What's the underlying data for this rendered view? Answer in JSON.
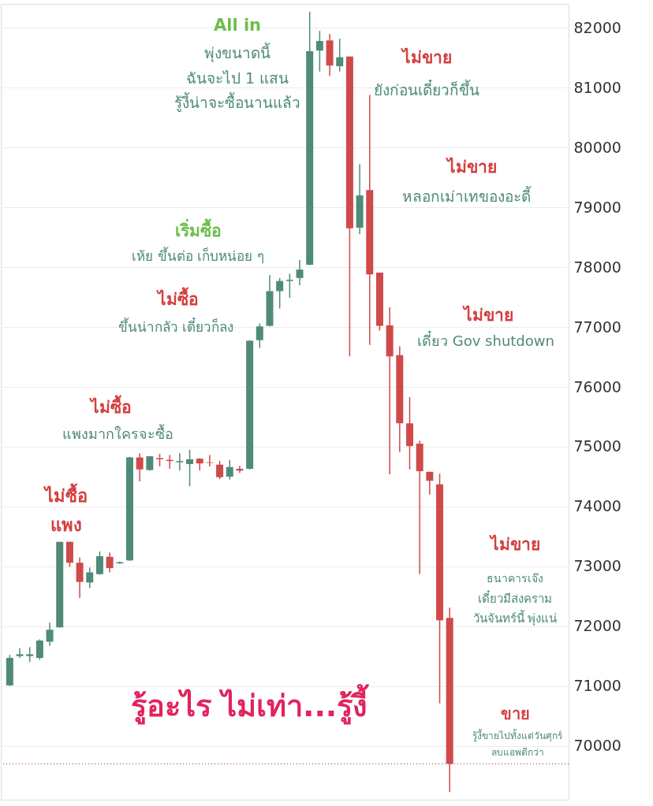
{
  "chart_data": {
    "type": "candlestick",
    "categories": [
      null,
      null,
      null,
      null,
      null,
      null,
      null,
      null,
      null,
      null,
      null,
      null,
      null,
      null,
      null,
      null,
      null,
      null,
      null,
      null,
      null,
      null,
      null,
      null,
      null,
      null,
      null,
      null,
      null,
      null,
      null,
      null,
      null,
      null,
      null,
      null,
      null,
      null,
      null,
      null,
      null,
      null,
      null,
      null,
      null,
      null,
      null,
      null,
      null,
      null,
      null,
      null,
      null,
      null,
      null,
      null
    ],
    "ohlc": [
      [
        71010,
        71520,
        71000,
        71470
      ],
      [
        71500,
        71630,
        71470,
        71530
      ],
      [
        71500,
        71650,
        71400,
        71530
      ],
      [
        71470,
        71780,
        71440,
        71760
      ],
      [
        71740,
        72060,
        71670,
        71940
      ],
      [
        71980,
        73410,
        71980,
        73410
      ],
      [
        73410,
        73410,
        72990,
        73060
      ],
      [
        73060,
        73150,
        72470,
        72740
      ],
      [
        72730,
        72980,
        72640,
        72900
      ],
      [
        72870,
        73250,
        72860,
        73170
      ],
      [
        73160,
        73230,
        72900,
        72970
      ],
      [
        73050,
        73080,
        73040,
        73070
      ],
      [
        73100,
        74830,
        73090,
        74820
      ],
      [
        74820,
        74890,
        74420,
        74620
      ],
      [
        74610,
        74840,
        74600,
        74840
      ],
      [
        74810,
        74880,
        74670,
        74790
      ],
      [
        74780,
        74860,
        74630,
        74760
      ],
      [
        74740,
        74890,
        74600,
        74760
      ],
      [
        74710,
        74950,
        74340,
        74790
      ],
      [
        74800,
        74810,
        74600,
        74720
      ],
      [
        74740,
        74860,
        74670,
        74730
      ],
      [
        74700,
        74760,
        74460,
        74490
      ],
      [
        74500,
        74780,
        74450,
        74660
      ],
      [
        74630,
        74680,
        74560,
        74600
      ],
      [
        74630,
        76780,
        74620,
        76770
      ],
      [
        76780,
        77060,
        76650,
        77010
      ],
      [
        77020,
        77870,
        77010,
        77600
      ],
      [
        77600,
        77820,
        77310,
        77770
      ],
      [
        77770,
        77890,
        77490,
        77790
      ],
      [
        77820,
        78120,
        77700,
        77960
      ],
      [
        78040,
        82270,
        78030,
        81610
      ],
      [
        81620,
        81950,
        81270,
        81780
      ],
      [
        81790,
        81900,
        81200,
        81370
      ],
      [
        81360,
        81820,
        81270,
        81510
      ],
      [
        81520,
        81520,
        76510,
        78650
      ],
      [
        78660,
        79720,
        78550,
        79200
      ],
      [
        79290,
        80880,
        76700,
        77880
      ],
      [
        77910,
        77910,
        76940,
        77020
      ],
      [
        77030,
        77330,
        74540,
        76510
      ],
      [
        76530,
        76680,
        74910,
        75390
      ],
      [
        75390,
        75830,
        74620,
        75010
      ],
      [
        75050,
        75100,
        72870,
        74590
      ],
      [
        74580,
        74580,
        74200,
        74430
      ],
      [
        74370,
        74550,
        70710,
        72100
      ],
      [
        72140,
        72310,
        69230,
        69700
      ],
      null,
      null,
      null,
      null,
      null,
      null,
      null,
      null,
      null,
      null,
      null
    ],
    "colors": [
      "#4f8b78",
      "#4f8b78",
      "#4f8b78",
      "#4f8b78",
      "#4f8b78",
      "#4f8b78",
      "#d04a4a",
      "#d04a4a",
      "#4f8b78",
      "#4f8b78",
      "#d04a4a",
      "#4f8b78",
      "#4f8b78",
      "#d04a4a",
      "#4f8b78",
      "#d04a4a",
      "#d04a4a",
      "#4f8b78",
      "#4f8b78",
      "#d04a4a",
      "#d04a4a",
      "#d04a4a",
      "#4f8b78",
      "#d04a4a",
      "#4f8b78",
      "#4f8b78",
      "#4f8b78",
      "#4f8b78",
      "#4f8b78",
      "#4f8b78",
      "#4f8b78",
      "#4f8b78",
      "#d04a4a",
      "#4f8b78",
      "#d04a4a",
      "#4f8b78",
      "#d04a4a",
      "#d04a4a",
      "#d04a4a",
      "#d04a4a",
      "#d04a4a",
      "#d04a4a",
      "#d04a4a",
      "#d04a4a",
      "#d04a4a",
      null,
      null,
      null,
      null,
      null,
      null,
      null,
      null,
      null,
      null,
      null
    ],
    "ylim": [
      69100,
      82400
    ],
    "yticks": [
      70000,
      71000,
      72000,
      73000,
      74000,
      75000,
      76000,
      77000,
      78000,
      79000,
      80000,
      81000,
      82000
    ],
    "grid": "y",
    "tick_labels": "y",
    "ref_lines": [
      {
        "axis": "y",
        "value": 69700,
        "color": "#c06060",
        "line_style": "dotted"
      }
    ],
    "annotations": [
      "All in",
      "พุ่งขนาดนี้",
      "ฉันจะไป 1 แสน",
      "รู้งี้น่าจะซื้อนานแล้ว",
      "ไม่ขาย",
      "ยังก่อนเดี๋ยวก็ขึ้น",
      "ไม่ขาย",
      "หลอกเม่าเทของอะดี้",
      "เริ่มซื้อ",
      "เห้ย ขึ้นต่อ เก็บหน่อย ๆ",
      "ไม่ซื้อ",
      "ขึ้นน่ากลัว เดี๋ยวก็ลง",
      "ไม่ขาย",
      "เดี๋ยว Gov shutdown",
      "ไม่ซื้อ",
      "แพงมากใครจะซื้อ",
      "ไม่ซื้อ",
      "แพง",
      "ไม่ขาย",
      "ธนาคารเจ๊ง",
      "เดี๋ยวมีสงคราม",
      "วันจันทร์นี้ พุ่งแน่",
      "ขาย",
      "รู้งี้ขายไปทั้งแต่วันศุกร์",
      "ลบแอพดีกว่า",
      "รู้อะไร ไม่เท่า...รู้งี้"
    ]
  }
}
